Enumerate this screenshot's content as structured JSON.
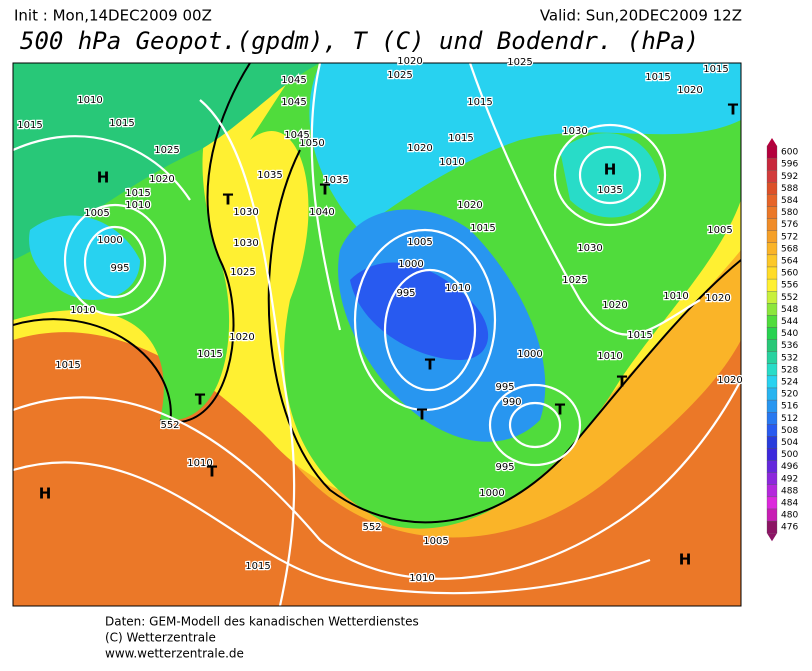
{
  "header": {
    "init": "Init : Mon,14DEC2009 00Z",
    "valid": "Valid: Sun,20DEC2009 12Z",
    "title": "500 hPa Geopot.(gpdm), T (C) und Bodendr. (hPa)"
  },
  "map": {
    "labels": [
      "1010",
      "1015",
      "1015",
      "H",
      "1020",
      "1015",
      "1010",
      "1005",
      "1000",
      "995",
      "1010",
      "1025",
      "1030",
      "1035",
      "1040",
      "1045",
      "1045",
      "1050",
      "1045",
      "1035",
      "1030",
      "1025",
      "1020",
      "1015",
      "1010",
      "T",
      "T",
      "T",
      "T",
      "1025",
      "1015",
      "1020",
      "1010",
      "1015",
      "1020",
      "1005",
      "1000",
      "1010",
      "995",
      "T",
      "T",
      "1015",
      "1020",
      "1025",
      "1030",
      "1035",
      "H",
      "1030",
      "1025",
      "1020",
      "1015",
      "1015",
      "1020",
      "1020",
      "1010",
      "1005",
      "1000",
      "995",
      "990",
      "995",
      "1000",
      "1005",
      "1010",
      "1015",
      "1015",
      "H",
      "H",
      "T",
      "T",
      "T",
      "552",
      "552",
      "1015",
      "1010",
      "1020"
    ]
  },
  "legend": {
    "entries": [
      {
        "value": 600,
        "color": "#b4003c"
      },
      {
        "value": 596,
        "color": "#c8283c"
      },
      {
        "value": 592,
        "color": "#d23c3c"
      },
      {
        "value": 588,
        "color": "#dc5028"
      },
      {
        "value": 584,
        "color": "#e66428"
      },
      {
        "value": 580,
        "color": "#eb7828"
      },
      {
        "value": 576,
        "color": "#f08c28"
      },
      {
        "value": 572,
        "color": "#f5a028"
      },
      {
        "value": 568,
        "color": "#fab428"
      },
      {
        "value": 564,
        "color": "#fcc828"
      },
      {
        "value": 560,
        "color": "#ffdc28"
      },
      {
        "value": 556,
        "color": "#fff032"
      },
      {
        "value": 552,
        "color": "#c8f03c"
      },
      {
        "value": 548,
        "color": "#8ce63c"
      },
      {
        "value": 544,
        "color": "#50dc3c"
      },
      {
        "value": 540,
        "color": "#28d250"
      },
      {
        "value": 536,
        "color": "#28c878"
      },
      {
        "value": 532,
        "color": "#28d2a0"
      },
      {
        "value": 528,
        "color": "#28dcc8"
      },
      {
        "value": 524,
        "color": "#28d2f0"
      },
      {
        "value": 520,
        "color": "#28b4f0"
      },
      {
        "value": 516,
        "color": "#2896f0"
      },
      {
        "value": 512,
        "color": "#2878f0"
      },
      {
        "value": 508,
        "color": "#285af0"
      },
      {
        "value": 504,
        "color": "#283cdc"
      },
      {
        "value": 500,
        "color": "#3c28dc"
      },
      {
        "value": 496,
        "color": "#6428dc"
      },
      {
        "value": 492,
        "color": "#8c28dc"
      },
      {
        "value": 488,
        "color": "#b428dc"
      },
      {
        "value": 484,
        "color": "#dc28dc"
      },
      {
        "value": 480,
        "color": "#c81eb4"
      },
      {
        "value": 476,
        "color": "#8c1464"
      }
    ]
  },
  "footer": {
    "lines": [
      "Daten: GEM-Modell des kanadischen Wetterdienstes",
      "(C) Wetterzentrale",
      "www.wetterzentrale.de"
    ]
  }
}
